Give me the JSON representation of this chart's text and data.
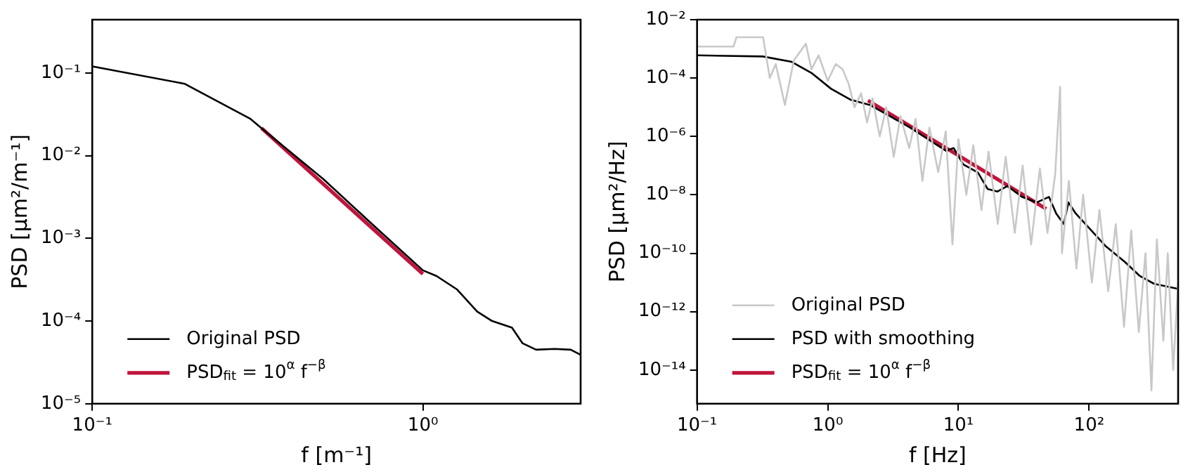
{
  "chart_data": [
    {
      "type": "line",
      "xlabel": "f [m⁻¹]",
      "ylabel": "PSD [µm²/m⁻¹]",
      "log": "xy",
      "grid": false,
      "legend": "bottom left",
      "marker": "none",
      "line_style": "solid",
      "xlim": [
        0.1,
        3
      ],
      "xticks": [
        {
          "value": 0.1,
          "label": "10⁻¹"
        },
        {
          "value": 1,
          "label": "10⁰"
        }
      ],
      "ylim": [
        1e-05,
        0.44
      ],
      "yticks": [
        {
          "value": 1e-05,
          "label": "10⁻⁵"
        },
        {
          "value": 0.0001,
          "label": "10⁻⁴"
        },
        {
          "value": 0.001,
          "label": "10⁻³"
        },
        {
          "value": 0.01,
          "label": "10⁻²"
        },
        {
          "value": 0.1,
          "label": "10⁻¹"
        }
      ],
      "series": [
        {
          "name": "Original PSD",
          "color": "#000000",
          "x": [
            0.1,
            0.19,
            0.3,
            0.325,
            0.5,
            0.7,
            1.0,
            1.1,
            1.27,
            1.46,
            1.62,
            1.86,
            2.0,
            2.2,
            2.5,
            2.8,
            3.0
          ],
          "values": [
            0.12,
            0.074,
            0.028,
            0.0215,
            0.0052,
            0.0015,
            0.00041,
            0.00035,
            0.00024,
            0.00013,
            0.0001,
            8.3e-05,
            5.4e-05,
            4.5e-05,
            4.6e-05,
            4.5e-05,
            3.9e-05
          ]
        },
        {
          "name": "PSD$_{fit}$ = 10$^{α}$ f$^{−β}$",
          "color": "#c0143c",
          "x": [
            0.325,
            1.0
          ],
          "values": [
            0.0215,
            0.00037
          ]
        }
      ]
    },
    {
      "type": "line",
      "xlabel": "f [Hz]",
      "ylabel": "PSD [µm²/Hz]",
      "log": "xy",
      "grid": false,
      "legend": "bottom left",
      "marker": "none",
      "line_style": "solid",
      "xlim": [
        0.1,
        480
      ],
      "xticks": [
        {
          "value": 0.1,
          "label": "10⁻¹"
        },
        {
          "value": 1,
          "label": "10⁰"
        },
        {
          "value": 10,
          "label": "10¹"
        },
        {
          "value": 100,
          "label": "10²"
        }
      ],
      "ylim": [
        7e-16,
        0.01
      ],
      "yticks": [
        {
          "value": 1e-14,
          "label": "10⁻¹⁴"
        },
        {
          "value": 1e-12,
          "label": "10⁻¹²"
        },
        {
          "value": 1e-10,
          "label": "10⁻¹⁰"
        },
        {
          "value": 1e-08,
          "label": "10⁻⁸"
        },
        {
          "value": 1e-06,
          "label": "10⁻⁶"
        },
        {
          "value": 0.0001,
          "label": "10⁻⁴"
        },
        {
          "value": 0.01,
          "label": "10⁻²"
        }
      ],
      "series": [
        {
          "name": "Original PSD",
          "color": "#c8c8c8",
          "x": [
            0.1,
            0.19,
            0.2,
            0.32,
            0.36,
            0.4,
            0.47,
            0.55,
            0.68,
            0.75,
            0.85,
            1.0,
            1.15,
            1.3,
            1.45,
            1.6,
            1.8,
            2.0,
            2.2,
            2.5,
            2.8,
            3.2,
            3.6,
            4.2,
            4.7,
            5.3,
            6,
            7,
            8,
            9,
            10,
            11.5,
            13,
            15,
            17,
            20,
            23,
            27,
            31,
            36,
            42,
            48,
            55,
            60,
            62,
            70,
            80,
            90,
            105,
            120,
            140,
            160,
            185,
            210,
            240,
            270,
            300,
            330,
            370,
            400,
            440,
            480
          ],
          "values": [
            0.0012,
            0.0012,
            0.0025,
            0.0025,
            0.0001,
            0.0003,
            1.2e-05,
            0.0004,
            0.0015,
            0.0002,
            0.0006,
            8e-05,
            0.0003,
            0.0002,
            6e-05,
            1e-05,
            3e-05,
            3e-06,
            2e-05,
            1e-06,
            1e-05,
            2e-07,
            5e-06,
            4e-07,
            4e-06,
            3e-08,
            2e-06,
            6e-08,
            1.5e-06,
            2e-10,
            8e-07,
            1e-08,
            5e-07,
            3e-09,
            3e-07,
            1e-09,
            2e-07,
            5e-10,
            1e-07,
            2e-10,
            8e-08,
            5e-10,
            5e-08,
            5e-05,
            1e-10,
            3e-08,
            3e-11,
            1e-08,
            1e-11,
            3e-09,
            5e-12,
            1e-09,
            3e-13,
            6e-10,
            2e-13,
            1e-10,
            2e-15,
            3e-10,
            1e-13,
            1e-10,
            1e-14,
            1e-11
          ]
        },
        {
          "name": "PSD with smoothing",
          "color": "#000000",
          "x": [
            0.1,
            0.318,
            0.53,
            0.75,
            1.06,
            1.5,
            2.1,
            4.2,
            8.06,
            9.2,
            10.9,
            14.1,
            16.7,
            19.9,
            23.7,
            30.6,
            39.8,
            49.3,
            56,
            64,
            69.5,
            79,
            102,
            133,
            188,
            243,
            314,
            480
          ],
          "values": [
            0.0006,
            0.00055,
            0.00036,
            0.00015,
            4.3e-05,
            1.8e-05,
            1.2e-05,
            2.1e-06,
            3.2e-07,
            4e-07,
            1.1e-07,
            5.8e-08,
            1.6e-08,
            1.3e-08,
            2e-08,
            8.5e-09,
            5.5e-09,
            8.5e-09,
            2.3e-09,
            1e-09,
            5.5e-09,
            2.3e-09,
            6.6e-10,
            1.8e-10,
            5e-11,
            1.7e-11,
            9e-12,
            6e-12
          ]
        },
        {
          "name": "PSD$_{fit}$ = 10$^{α}$ f$^{−β}$",
          "color": "#c0143c",
          "x": [
            2.03,
            47
          ],
          "values": [
            1.7e-05,
            3.3e-09
          ]
        }
      ]
    }
  ]
}
